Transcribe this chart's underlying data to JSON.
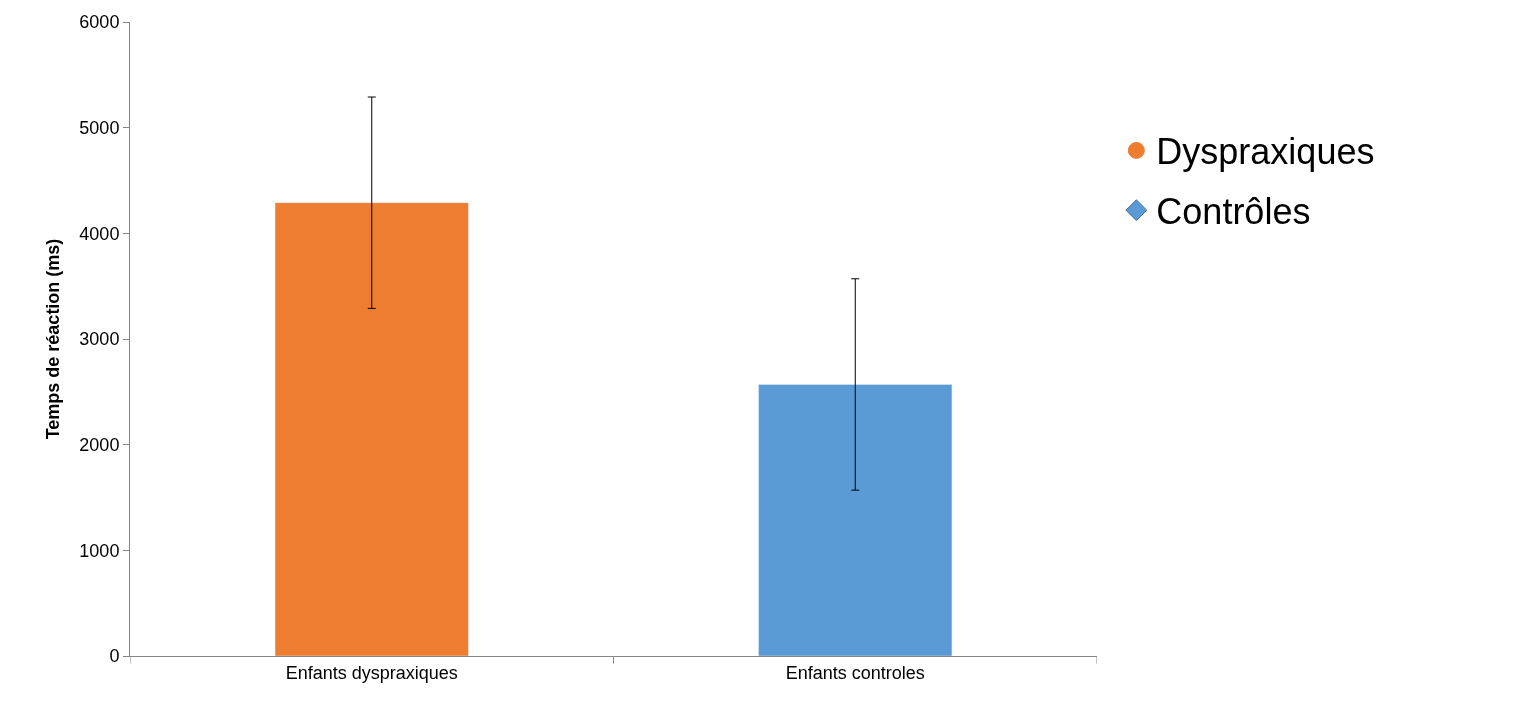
{
  "chart_data": {
    "type": "bar",
    "ylabel": "Temps de réaction (ms)",
    "categories": [
      "Enfants dyspraxiques",
      "Enfants controles"
    ],
    "series": [
      {
        "name": "Dyspraxiques",
        "color": "#ed7d31",
        "values": [
          4290,
          null
        ],
        "errors": [
          1000,
          null
        ],
        "marker": "circle"
      },
      {
        "name": "Contrôles",
        "color": "#5b9bd5",
        "values": [
          null,
          2570
        ],
        "errors": [
          null,
          1000
        ],
        "marker": "diamond"
      }
    ],
    "ylim": [
      0,
      6000
    ],
    "yticks": [
      0,
      1000,
      2000,
      3000,
      4000,
      5000,
      6000
    ],
    "legend": "right"
  }
}
